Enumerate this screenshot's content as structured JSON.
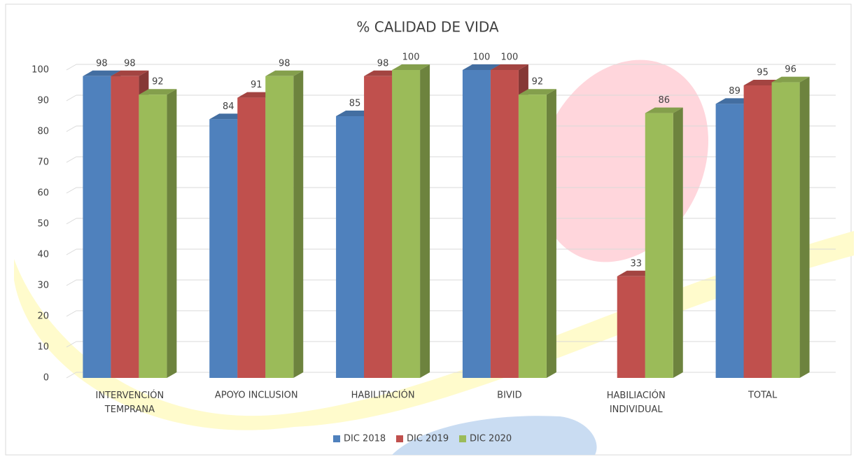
{
  "chart_data": {
    "type": "bar3d",
    "title": "% CALIDAD DE VIDA",
    "categories": [
      "INTERVENCIÓN TEMPRANA",
      "APOYO INCLUSION",
      "HABILITACIÓN",
      "BIVID",
      "HABILIACIÓN INDIVIDUAL",
      "TOTAL"
    ],
    "series": [
      {
        "name": "DIC 2018",
        "color": "#4f81bd",
        "values": [
          98,
          84,
          85,
          100,
          null,
          89
        ]
      },
      {
        "name": "DIC 2019",
        "color": "#c0504d",
        "values": [
          98,
          91,
          98,
          100,
          33,
          95
        ]
      },
      {
        "name": "DIC 2020",
        "color": "#9bbb59",
        "values": [
          92,
          98,
          100,
          92,
          86,
          96
        ]
      }
    ],
    "ylim": [
      0,
      100
    ],
    "yticks": [
      0,
      10,
      20,
      30,
      40,
      50,
      60,
      70,
      80,
      90,
      100
    ],
    "grid": true,
    "legend": "bottom",
    "data_labels": true
  }
}
